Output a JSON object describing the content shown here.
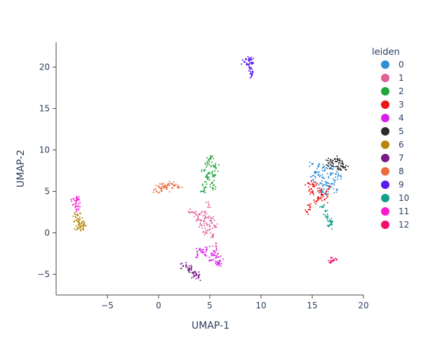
{
  "chart_data": {
    "type": "scatter",
    "title": "",
    "xlabel": "UMAP-1",
    "ylabel": "UMAP-2",
    "xlim": [
      -10,
      20
    ],
    "ylim": [
      -7.5,
      23
    ],
    "xticks": [
      -5,
      0,
      5,
      10,
      15,
      20
    ],
    "xtick_labels": [
      "−5",
      "0",
      "5",
      "10",
      "15",
      "20"
    ],
    "yticks": [
      -5,
      0,
      5,
      10,
      15,
      20
    ],
    "ytick_labels": [
      "−5",
      "0",
      "5",
      "10",
      "15",
      "20"
    ],
    "grid": false,
    "legend_title": "leiden",
    "legend_position": "right",
    "series": [
      {
        "name": "0",
        "color": "#2f8fd8",
        "points": [
          [
            15.0,
            8.3
          ],
          [
            15.6,
            8.0
          ],
          [
            16.2,
            7.5
          ],
          [
            16.8,
            7.0
          ],
          [
            15.3,
            7.2
          ],
          [
            16.0,
            6.7
          ],
          [
            17.2,
            6.3
          ],
          [
            15.8,
            6.0
          ],
          [
            16.6,
            5.6
          ],
          [
            17.4,
            5.2
          ],
          [
            16.3,
            4.8
          ],
          [
            15.1,
            6.4
          ],
          [
            17.0,
            7.7
          ],
          [
            15.6,
            7.0
          ],
          [
            16.4,
            6.1
          ],
          [
            17.8,
            6.8
          ],
          [
            16.9,
            5.9
          ],
          [
            15.9,
            5.2
          ],
          [
            16.1,
            7.9
          ],
          [
            17.3,
            7.1
          ]
        ]
      },
      {
        "name": "1",
        "color": "#e0609a",
        "points": [
          [
            3.2,
            2.5
          ],
          [
            4.0,
            2.2
          ],
          [
            4.6,
            1.8
          ],
          [
            5.2,
            1.2
          ],
          [
            5.5,
            0.7
          ],
          [
            4.8,
            0.3
          ],
          [
            4.2,
            0.9
          ],
          [
            3.9,
            1.6
          ],
          [
            4.5,
            2.5
          ],
          [
            4.9,
            3.4
          ],
          [
            5.1,
            1.8
          ],
          [
            5.3,
            -0.5
          ],
          [
            5.6,
            -1.6
          ],
          [
            5.8,
            -2.5
          ],
          [
            4.4,
            1.4
          ],
          [
            3.6,
            2.3
          ],
          [
            5.0,
            0.8
          ],
          [
            4.6,
            0.0
          ]
        ]
      },
      {
        "name": "2",
        "color": "#22a53a",
        "points": [
          [
            5.1,
            9.1
          ],
          [
            4.8,
            8.4
          ],
          [
            5.4,
            8.0
          ],
          [
            4.5,
            7.6
          ],
          [
            5.0,
            7.2
          ],
          [
            5.5,
            7.0
          ],
          [
            4.8,
            6.5
          ],
          [
            5.2,
            6.0
          ],
          [
            4.6,
            5.5
          ],
          [
            4.4,
            5.0
          ],
          [
            5.3,
            5.4
          ],
          [
            4.9,
            8.8
          ],
          [
            5.6,
            7.8
          ],
          [
            4.7,
            6.9
          ]
        ]
      },
      {
        "name": "3",
        "color": "#ee1515",
        "points": [
          [
            14.6,
            6.0
          ],
          [
            15.2,
            5.6
          ],
          [
            15.8,
            5.1
          ],
          [
            16.3,
            4.7
          ],
          [
            15.0,
            4.9
          ],
          [
            15.6,
            4.3
          ],
          [
            16.2,
            4.0
          ],
          [
            14.9,
            5.3
          ],
          [
            16.6,
            5.3
          ],
          [
            15.4,
            3.8
          ],
          [
            14.8,
            3.1
          ],
          [
            14.5,
            2.5
          ],
          [
            15.9,
            4.6
          ],
          [
            15.3,
            6.1
          ]
        ]
      },
      {
        "name": "4",
        "color": "#d820ee",
        "points": [
          [
            4.0,
            -2.0
          ],
          [
            4.5,
            -2.6
          ],
          [
            5.2,
            -2.7
          ],
          [
            5.6,
            -3.0
          ],
          [
            6.0,
            -3.4
          ],
          [
            5.8,
            -3.8
          ],
          [
            5.1,
            -3.3
          ],
          [
            4.3,
            -2.3
          ],
          [
            3.8,
            -2.6
          ],
          [
            5.4,
            -2.2
          ],
          [
            5.9,
            -3.6
          ],
          [
            4.7,
            -2.0
          ]
        ]
      },
      {
        "name": "5",
        "color": "#2b2b2b",
        "points": [
          [
            16.8,
            8.8
          ],
          [
            17.3,
            8.6
          ],
          [
            17.7,
            8.7
          ],
          [
            18.0,
            8.3
          ],
          [
            17.5,
            8.0
          ],
          [
            16.9,
            8.1
          ],
          [
            17.8,
            7.6
          ],
          [
            18.2,
            7.9
          ],
          [
            17.2,
            8.9
          ],
          [
            16.6,
            8.4
          ]
        ]
      },
      {
        "name": "6",
        "color": "#b8860b",
        "points": [
          [
            -8.0,
            1.5
          ],
          [
            -7.8,
            1.0
          ],
          [
            -7.5,
            1.2
          ],
          [
            -7.9,
            0.6
          ],
          [
            -7.6,
            0.7
          ],
          [
            -7.3,
            1.0
          ],
          [
            -8.1,
            1.9
          ],
          [
            -7.7,
            1.6
          ],
          [
            -7.4,
            0.5
          ],
          [
            -7.9,
            2.2
          ]
        ]
      },
      {
        "name": "7",
        "color": "#7a1a8a",
        "points": [
          [
            2.4,
            -4.0
          ],
          [
            2.9,
            -4.5
          ],
          [
            3.3,
            -4.8
          ],
          [
            3.7,
            -5.0
          ],
          [
            3.9,
            -5.4
          ],
          [
            2.7,
            -3.9
          ],
          [
            3.0,
            -4.3
          ],
          [
            3.5,
            -5.2
          ]
        ]
      },
      {
        "name": "8",
        "color": "#e86c3c",
        "points": [
          [
            -0.2,
            5.0
          ],
          [
            0.2,
            5.4
          ],
          [
            0.6,
            5.7
          ],
          [
            1.0,
            5.9
          ],
          [
            1.5,
            5.7
          ],
          [
            2.0,
            5.5
          ],
          [
            0.0,
            5.6
          ],
          [
            0.8,
            5.3
          ],
          [
            1.3,
            5.9
          ]
        ]
      },
      {
        "name": "9",
        "color": "#5a1aee",
        "points": [
          [
            8.4,
            20.6
          ],
          [
            8.8,
            20.8
          ],
          [
            9.1,
            20.4
          ],
          [
            8.9,
            19.9
          ],
          [
            9.2,
            19.4
          ],
          [
            8.6,
            20.3
          ],
          [
            9.0,
            20.9
          ],
          [
            9.1,
            19.0
          ]
        ]
      },
      {
        "name": "10",
        "color": "#16a08c",
        "points": [
          [
            16.0,
            3.1
          ],
          [
            16.3,
            2.6
          ],
          [
            16.5,
            2.0
          ],
          [
            16.7,
            1.5
          ],
          [
            16.9,
            1.0
          ],
          [
            16.6,
            0.8
          ],
          [
            16.8,
            1.3
          ]
        ]
      },
      {
        "name": "11",
        "color": "#ff1ad2",
        "points": [
          [
            -8.3,
            4.1
          ],
          [
            -8.0,
            3.9
          ],
          [
            -7.8,
            4.0
          ],
          [
            -8.1,
            3.5
          ],
          [
            -7.9,
            3.2
          ],
          [
            -8.0,
            2.8
          ]
        ]
      },
      {
        "name": "12",
        "color": "#f0106c",
        "points": [
          [
            16.8,
            -3.6
          ],
          [
            17.0,
            -3.4
          ],
          [
            17.1,
            -3.3
          ]
        ]
      }
    ]
  }
}
